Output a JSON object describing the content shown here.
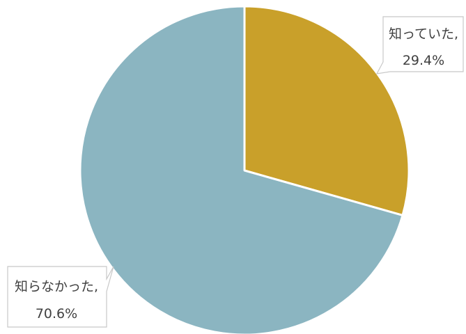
{
  "chart_data": {
    "type": "pie",
    "title": "",
    "slices": [
      {
        "label": "知っていた,",
        "value": 29.4,
        "value_label": "29.4%",
        "color": "#C9A02A"
      },
      {
        "label": "知らなかった,",
        "value": 70.6,
        "value_label": "70.6%",
        "color": "#8BB5C1"
      }
    ],
    "start_angle": "12 o'clock",
    "direction": "clockwise",
    "legend": "none",
    "data_labels": "callouts"
  }
}
